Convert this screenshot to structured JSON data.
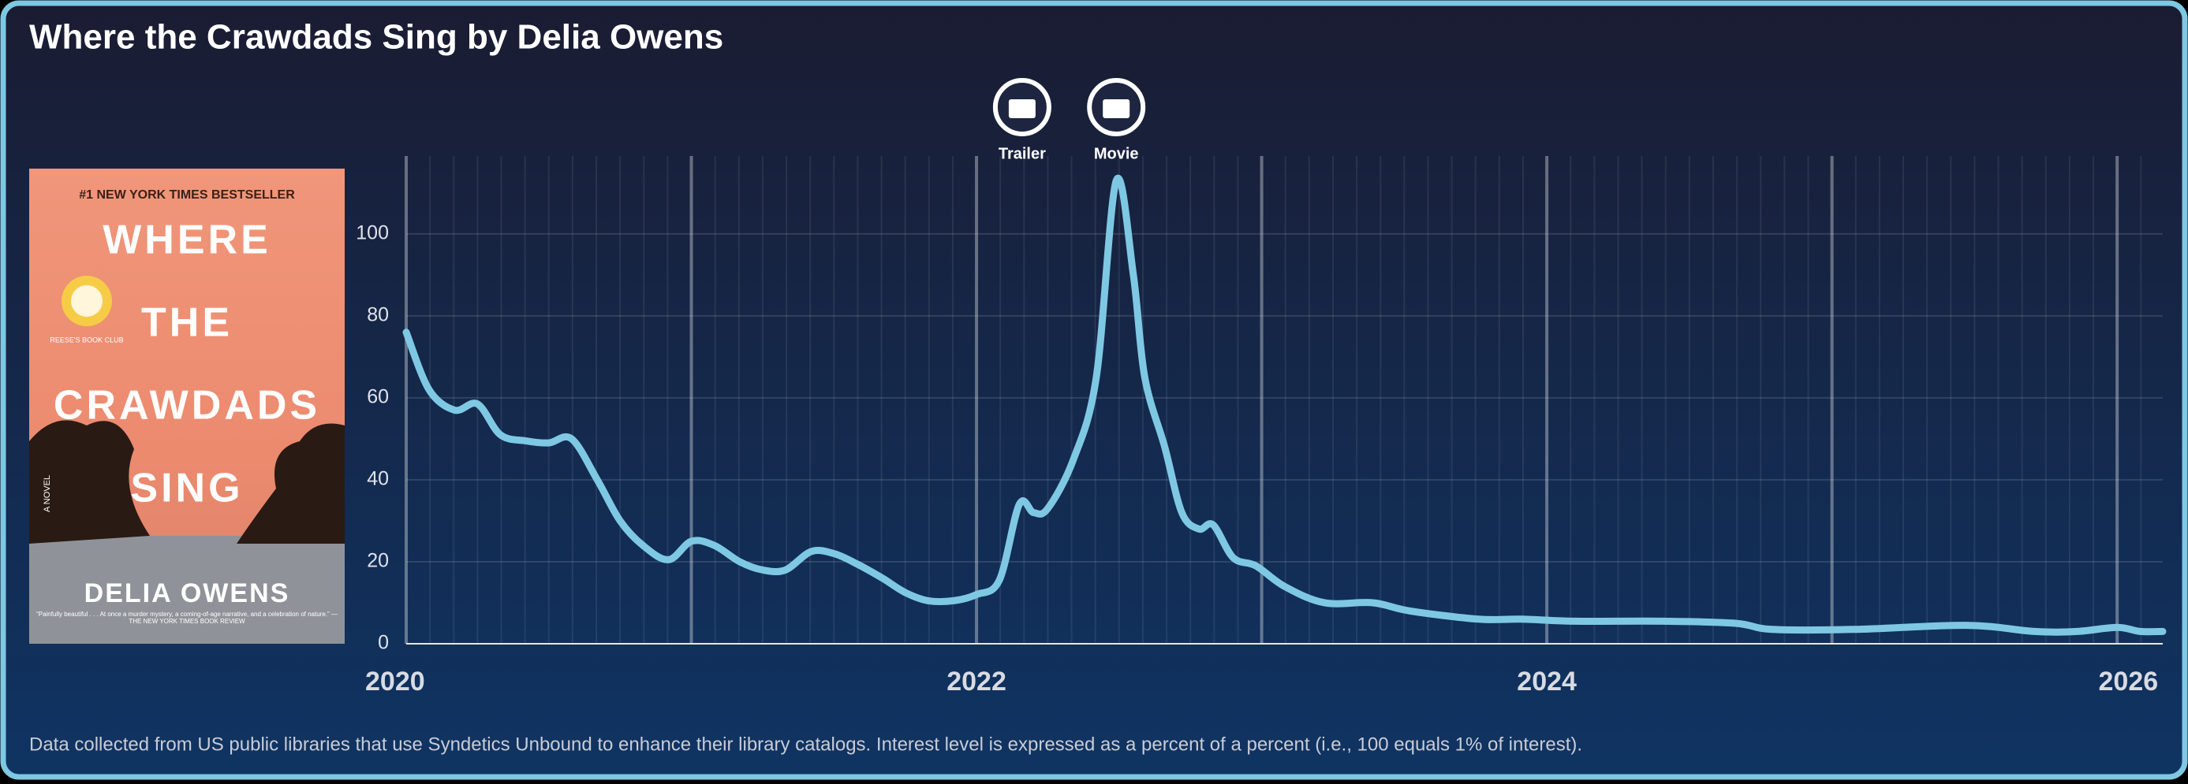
{
  "chart_data": {
    "type": "line",
    "title": "Where the Crawdads Sing by Delia Owens",
    "x": [
      2020.0,
      2020.08,
      2020.17,
      2020.25,
      2020.33,
      2020.42,
      2020.5,
      2020.58,
      2020.67,
      2020.75,
      2020.83,
      2020.92,
      2021.0,
      2021.08,
      2021.17,
      2021.25,
      2021.33,
      2021.42,
      2021.5,
      2021.58,
      2021.67,
      2021.75,
      2021.83,
      2021.92,
      2022.0,
      2022.08,
      2022.15,
      2022.2,
      2022.25,
      2022.34,
      2022.42,
      2022.49,
      2022.55,
      2022.59,
      2022.66,
      2022.72,
      2022.78,
      2022.83,
      2022.9,
      2022.98,
      2023.08,
      2023.22,
      2023.39,
      2023.52,
      2023.76,
      2023.91,
      2024.1,
      2024.4,
      2024.66,
      2024.79,
      2025.08,
      2025.47,
      2025.71,
      2025.86,
      2026.0,
      2026.08,
      2026.16
    ],
    "values": [
      76,
      62,
      57,
      58.5,
      51,
      49.5,
      49,
      50,
      40,
      30,
      24,
      20.5,
      25,
      24,
      20,
      18,
      18,
      22.5,
      22,
      19.5,
      16,
      12.5,
      10.5,
      10.5,
      12,
      15.5,
      34,
      32,
      33,
      45,
      65,
      113,
      90,
      65,
      48,
      32,
      28,
      29,
      21,
      19,
      14,
      10,
      10,
      8,
      6,
      6,
      5.5,
      5.5,
      5,
      3.5,
      3.5,
      4.5,
      3,
      3,
      4,
      3,
      3
    ],
    "color": "#7ec8e3",
    "xlim": [
      2020,
      2026.16
    ],
    "xticks": [
      2020,
      2022,
      2024,
      2026
    ],
    "ylim": [
      0,
      119
    ],
    "yticks": [
      0,
      20,
      40,
      60,
      80,
      100
    ],
    "grid": true,
    "annotations": [
      {
        "x": 2022.16,
        "label": "Trailer"
      },
      {
        "x": 2022.49,
        "label": "Movie"
      }
    ],
    "footnote": "Data collected from US public libraries that use Syndetics Unbound to enhance their library catalogs. Interest level is expressed as a percent of a percent (i.e., 100 equals 1% of interest)."
  },
  "cover": {
    "banner": "#1 NEW YORK TIMES BESTSELLER",
    "title_lines": [
      "WHERE",
      "THE",
      "CRAWDADS",
      "SING"
    ],
    "badge": "REESE'S BOOK CLUB",
    "subtitle": "A NOVEL",
    "author": "DELIA OWENS",
    "quote": "“Painfully beautiful . . . At once a murder mystery, a coming-of-age narrative, and a celebration of nature.” —THE NEW YORK TIMES BOOK REVIEW"
  }
}
